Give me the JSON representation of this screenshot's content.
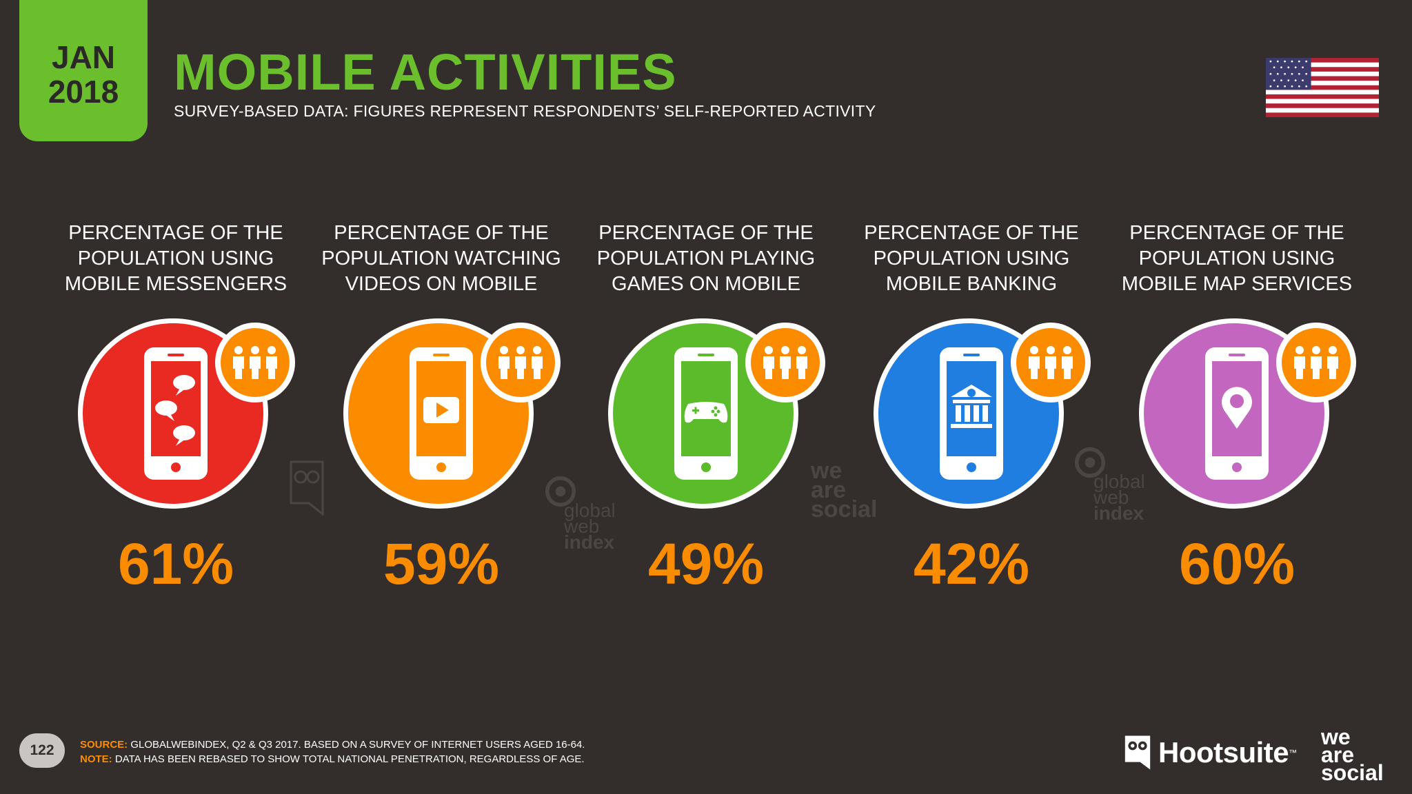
{
  "badge": {
    "month": "JAN",
    "year": "2018"
  },
  "title": "MOBILE ACTIVITIES",
  "subtitle": "SURVEY-BASED DATA: FIGURES REPRESENT RESPONDENTS’ SELF-REPORTED ACTIVITY",
  "flag": "united-states-flag",
  "colors": {
    "accent_green": "#6cbf2c",
    "accent_orange": "#fb8c00",
    "background": "#332e2b"
  },
  "activities": [
    {
      "label": "PERCENTAGE OF THE POPULATION USING MOBILE MESSENGERS",
      "value": "61%",
      "color": "#e82a22",
      "icon": "chat-bubbles-icon"
    },
    {
      "label": "PERCENTAGE OF THE POPULATION WATCHING VIDEOS ON MOBILE",
      "value": "59%",
      "color": "#fb8c00",
      "icon": "video-play-icon"
    },
    {
      "label": "PERCENTAGE OF THE POPULATION PLAYING GAMES ON MOBILE",
      "value": "49%",
      "color": "#5cbb2a",
      "icon": "gamepad-icon"
    },
    {
      "label": "PERCENTAGE OF THE POPULATION USING MOBILE BANKING",
      "value": "42%",
      "color": "#1f7ee0",
      "icon": "bank-icon"
    },
    {
      "label": "PERCENTAGE OF THE POPULATION USING MOBILE MAP SERVICES",
      "value": "60%",
      "color": "#c266c0",
      "icon": "map-pin-icon"
    }
  ],
  "watermarks": {
    "was": [
      "we",
      "are",
      "social"
    ],
    "gwi": [
      "global",
      "web",
      "index"
    ]
  },
  "footer": {
    "page": "122",
    "source_label": "SOURCE:",
    "source_text": "GLOBALWEBINDEX, Q2 & Q3 2017. BASED ON A SURVEY OF INTERNET USERS AGED 16-64.",
    "note_label": "NOTE:",
    "note_text": "DATA HAS BEEN REBASED TO SHOW TOTAL NATIONAL PENETRATION, REGARDLESS OF AGE.",
    "brand1": "Hootsuite",
    "brand1_tm": "™",
    "brand2": [
      "we",
      "are",
      "social"
    ]
  }
}
